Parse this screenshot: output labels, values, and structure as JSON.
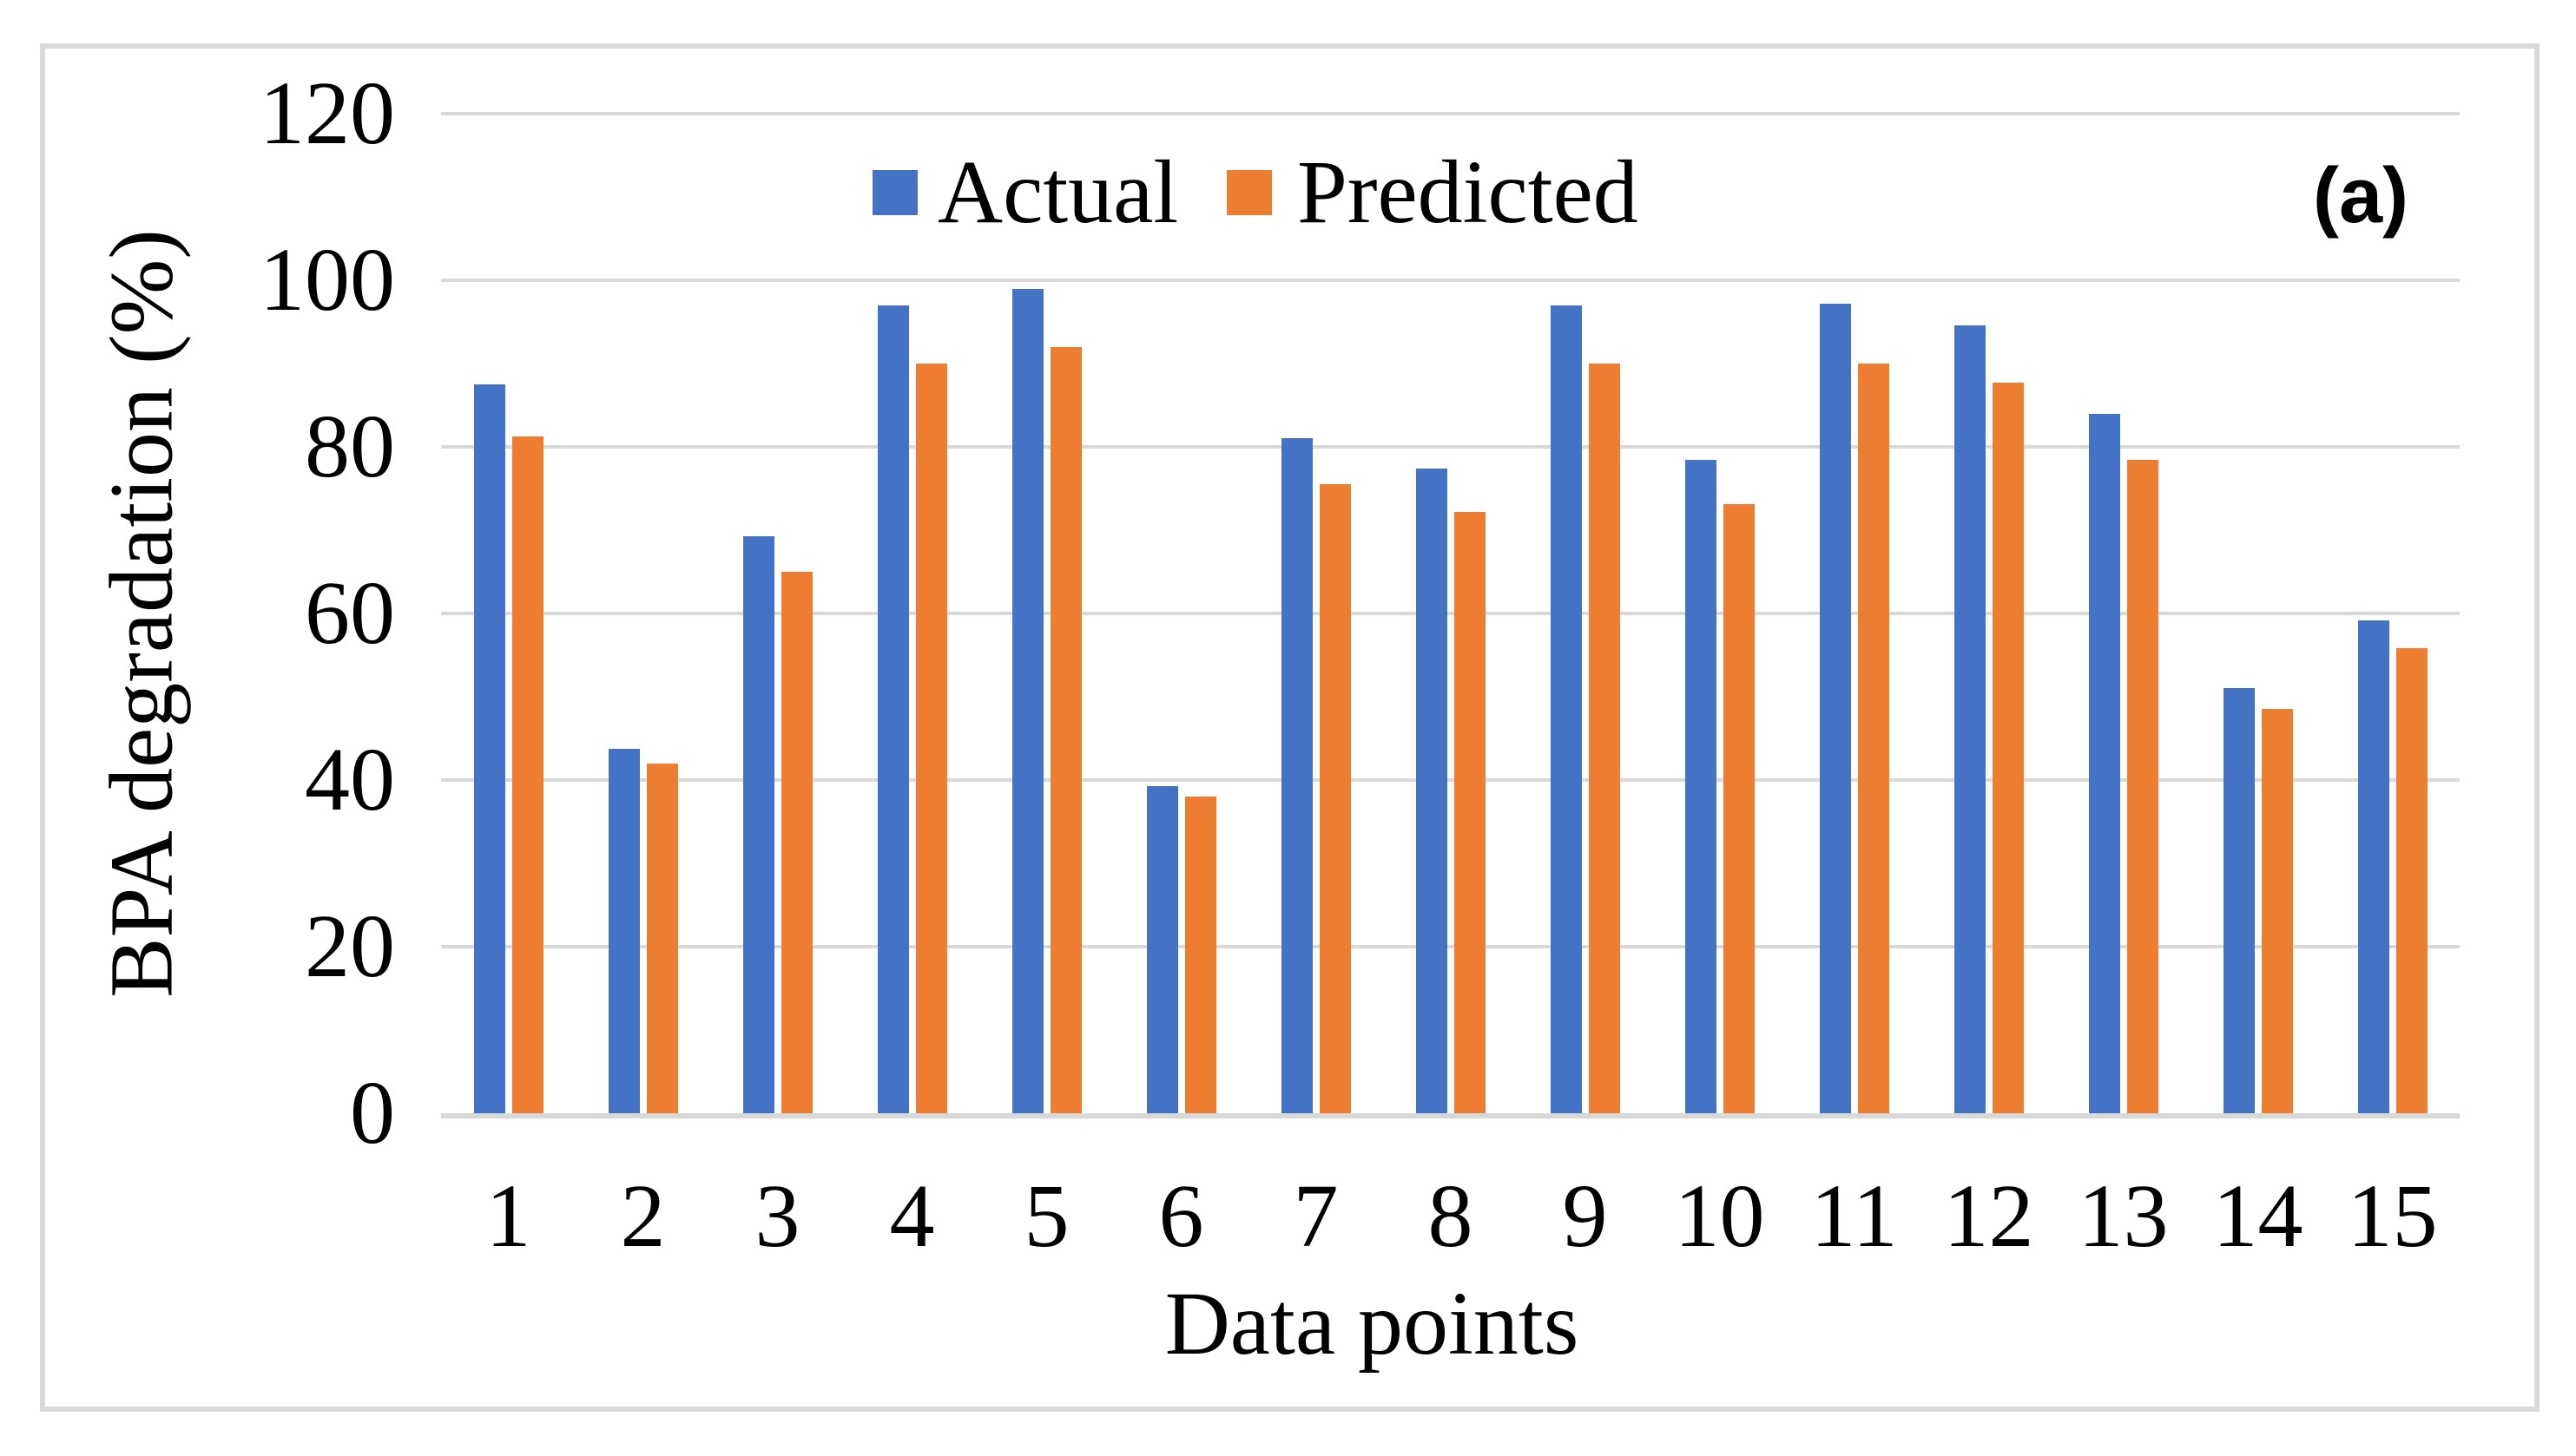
{
  "figure": {
    "panel_label": "(a)",
    "background_color": "#FFFFFF",
    "border_color": "#D9D9D9",
    "gridline_color": "#D9D9D9",
    "text_color": "#000000"
  },
  "legend": {
    "actual_label": "Actual",
    "predicted_label": "Predicted"
  },
  "chart_data": {
    "type": "bar",
    "title": "",
    "xlabel": "Data points",
    "ylabel": "BPA degradation (%)",
    "categories": [
      "1",
      "2",
      "3",
      "4",
      "5",
      "6",
      "7",
      "8",
      "9",
      "10",
      "11",
      "12",
      "13",
      "14",
      "15"
    ],
    "series": [
      {
        "name": "Actual",
        "color": "#4472C4",
        "values": [
          87.5,
          43.7,
          69.3,
          97.0,
          99.0,
          39.3,
          81.0,
          77.4,
          97.0,
          78.4,
          97.2,
          94.6,
          84.0,
          51.0,
          59.2
        ]
      },
      {
        "name": "Predicted",
        "color": "#ED7D31",
        "values": [
          81.3,
          42.0,
          65.0,
          90.0,
          92.0,
          38.0,
          75.5,
          72.2,
          90.0,
          73.1,
          90.0,
          87.7,
          78.4,
          48.5,
          55.8
        ]
      }
    ],
    "ylim": [
      0,
      120
    ],
    "yticks": [
      0,
      20,
      40,
      60,
      80,
      100,
      120
    ],
    "grid": "horizontal",
    "legend_position": "top-center"
  }
}
